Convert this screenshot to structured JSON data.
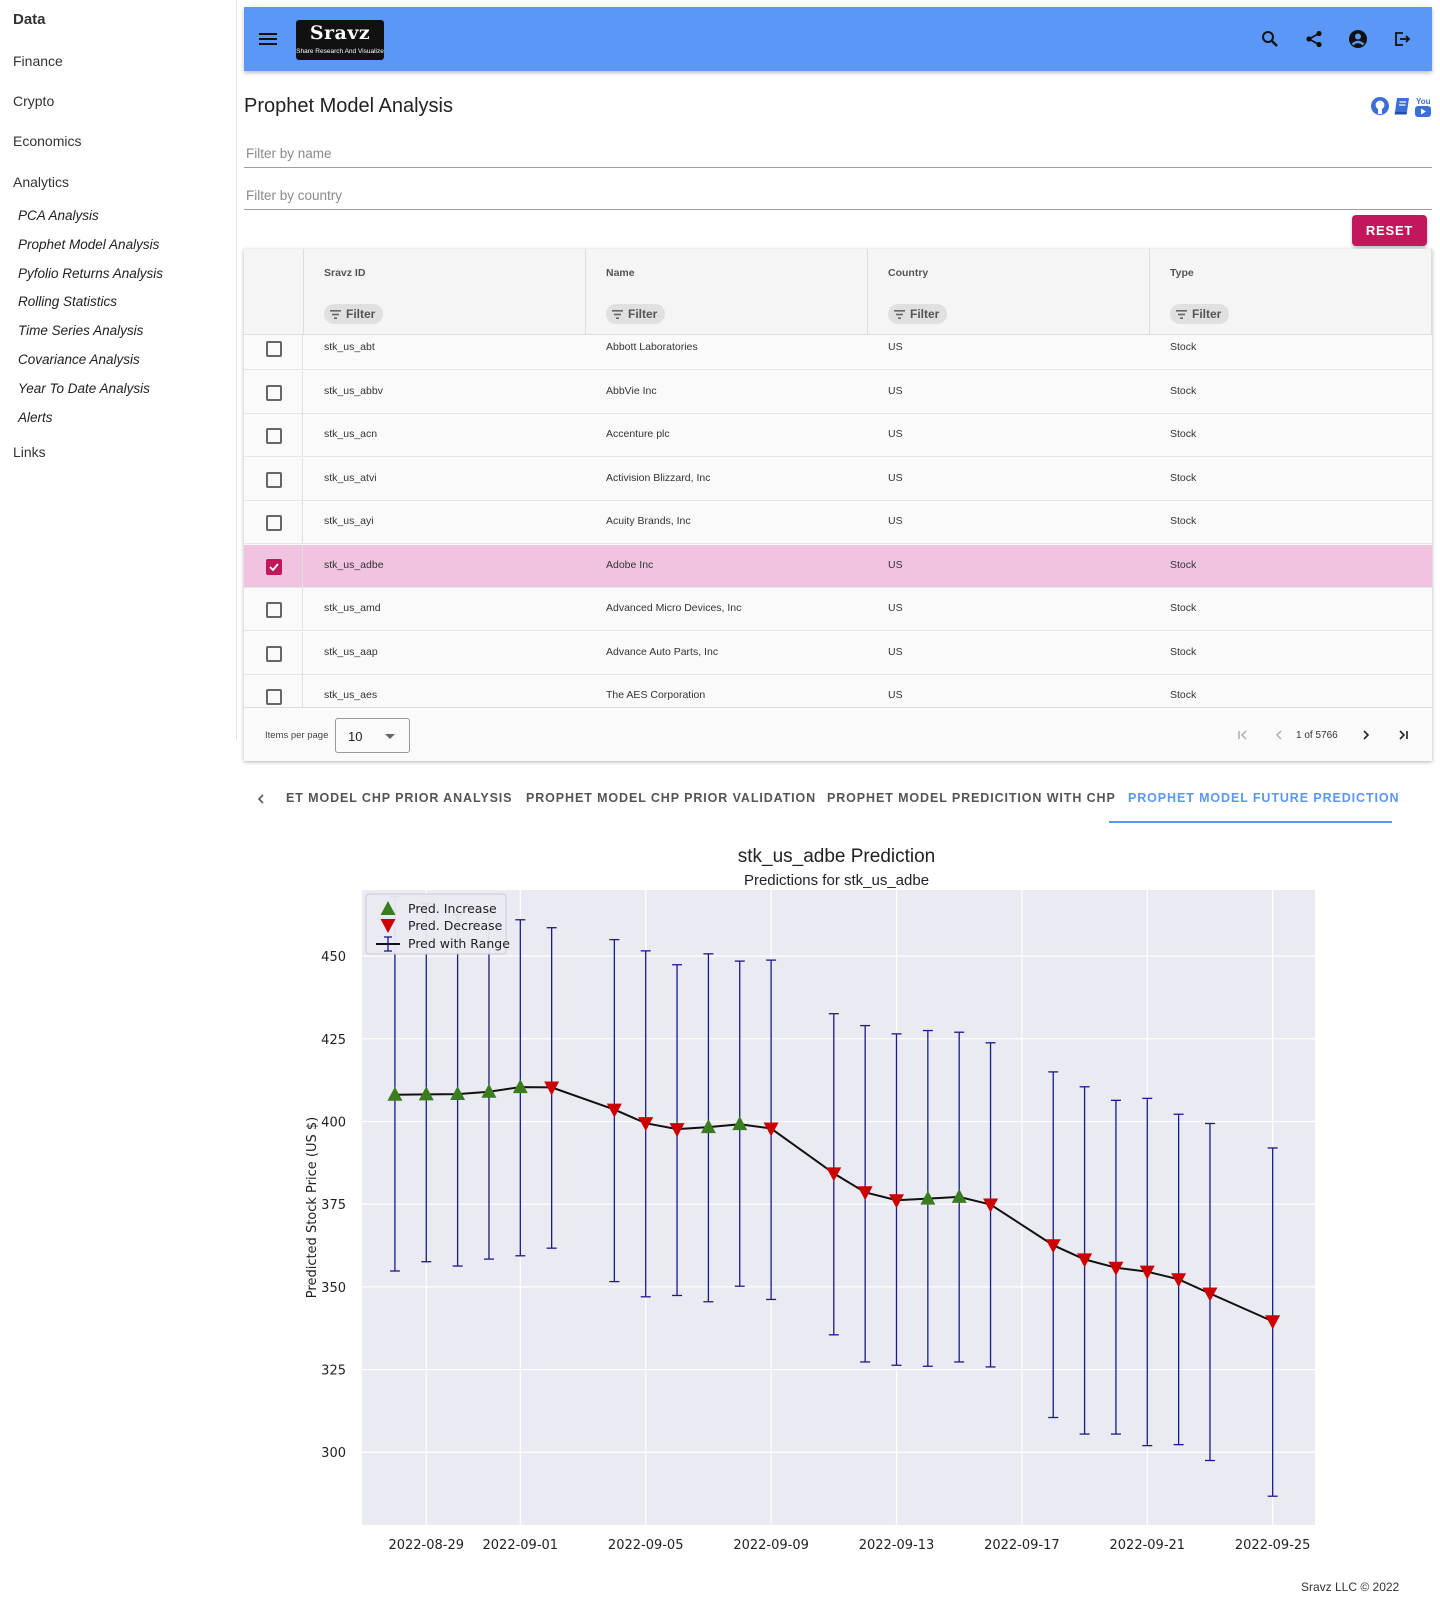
{
  "sidebar": {
    "categories": [
      "Data",
      "Finance",
      "Crypto",
      "Economics",
      "Analytics",
      "Links"
    ],
    "analytics_items": [
      "PCA Analysis",
      "Prophet Model Analysis",
      "Pyfolio Returns Analysis",
      "Rolling Statistics",
      "Time Series Analysis",
      "Covariance Analysis",
      "Year To Date Analysis",
      "Alerts"
    ]
  },
  "header": {
    "logo_main": "Sravz",
    "logo_sub": "Share Research And Visualize",
    "icons": [
      "menu-icon",
      "search-icon",
      "share-icon",
      "account-icon",
      "logout-icon"
    ],
    "color": "#5a97f7"
  },
  "page": {
    "title": "Prophet Model Analysis",
    "social_icons": [
      "github-icon",
      "book-icon",
      "youtube-icon"
    ]
  },
  "filters": {
    "name_placeholder": "Filter by name",
    "country_placeholder": "Filter by country",
    "reset_label": "RESET"
  },
  "table": {
    "columns": [
      "Sravz ID",
      "Name",
      "Country",
      "Type"
    ],
    "filter_label": "Filter",
    "rows": [
      {
        "id": "stk_us_abt",
        "name": "Abbott Laboratories",
        "country": "US",
        "type": "Stock",
        "selected": false
      },
      {
        "id": "stk_us_abbv",
        "name": "AbbVie Inc",
        "country": "US",
        "type": "Stock",
        "selected": false
      },
      {
        "id": "stk_us_acn",
        "name": "Accenture plc",
        "country": "US",
        "type": "Stock",
        "selected": false
      },
      {
        "id": "stk_us_atvi",
        "name": "Activision Blizzard, Inc",
        "country": "US",
        "type": "Stock",
        "selected": false
      },
      {
        "id": "stk_us_ayi",
        "name": "Acuity Brands, Inc",
        "country": "US",
        "type": "Stock",
        "selected": false
      },
      {
        "id": "stk_us_adbe",
        "name": "Adobe Inc",
        "country": "US",
        "type": "Stock",
        "selected": true
      },
      {
        "id": "stk_us_amd",
        "name": "Advanced Micro Devices, Inc",
        "country": "US",
        "type": "Stock",
        "selected": false
      },
      {
        "id": "stk_us_aap",
        "name": "Advance Auto Parts, Inc",
        "country": "US",
        "type": "Stock",
        "selected": false
      },
      {
        "id": "stk_us_aes",
        "name": "The AES Corporation",
        "country": "US",
        "type": "Stock",
        "selected": false
      }
    ],
    "items_per_page_label": "Items per page",
    "items_per_page": "10",
    "range_label": "1 of 5766",
    "selected_color": "#f0c4e0",
    "accent_color": "#c2185b"
  },
  "tabs": {
    "items": [
      "ET MODEL CHP PRIOR ANALYSIS",
      "PROPHET MODEL CHP PRIOR VALIDATION",
      "PROPHET MODEL PREDICITION WITH CHP",
      "PROPHET MODEL FUTURE PREDICTION"
    ],
    "active_index": 3
  },
  "chart_data": {
    "type": "line",
    "title": "stk_us_adbe Prediction",
    "subtitle": "Predictions for stk_us_adbe",
    "xlabel": "",
    "ylabel": "Predicted Stock Price (US $)",
    "x_start": "2022-08-28",
    "x_end": "2022-09-25",
    "ylim": [
      278,
      470
    ],
    "y_ticks": [
      300,
      325,
      350,
      375,
      400,
      425,
      450
    ],
    "x_ticks": [
      "2022-08-29",
      "2022-09-01",
      "2022-09-05",
      "2022-09-09",
      "2022-09-13",
      "2022-09-17",
      "2022-09-21",
      "2022-09-25"
    ],
    "grid": true,
    "legend_position": "top-left",
    "legend": [
      "Pred. Increase",
      "Pred. Decrease",
      "Pred with Range"
    ],
    "colors": {
      "increase": "#3a7d1f",
      "decrease": "#cc0000",
      "line": "#111111",
      "range": "#1a1a8c",
      "plot_bg": "#eaeaf2"
    },
    "points": [
      {
        "date": "2022-08-28",
        "value": 408.1,
        "low": 354.8,
        "high": 468.0,
        "dir": "up"
      },
      {
        "date": "2022-08-29",
        "value": 408.2,
        "low": 357.6,
        "high": 466.0,
        "dir": "up"
      },
      {
        "date": "2022-08-30",
        "value": 408.3,
        "low": 356.3,
        "high": 462.5,
        "dir": "up"
      },
      {
        "date": "2022-08-31",
        "value": 409.0,
        "low": 358.4,
        "high": 464.0,
        "dir": "up"
      },
      {
        "date": "2022-09-01",
        "value": 410.4,
        "low": 359.4,
        "high": 461.0,
        "dir": "up"
      },
      {
        "date": "2022-09-02",
        "value": 410.3,
        "low": 361.7,
        "high": 458.6,
        "dir": "down"
      },
      {
        "date": "2022-09-04",
        "value": 403.6,
        "low": 351.6,
        "high": 455.0,
        "dir": "down"
      },
      {
        "date": "2022-09-05",
        "value": 399.5,
        "low": 347.0,
        "high": 451.6,
        "dir": "down"
      },
      {
        "date": "2022-09-06",
        "value": 397.7,
        "low": 347.4,
        "high": 447.4,
        "dir": "down"
      },
      {
        "date": "2022-09-07",
        "value": 398.3,
        "low": 345.5,
        "high": 450.7,
        "dir": "up"
      },
      {
        "date": "2022-09-08",
        "value": 399.2,
        "low": 350.2,
        "high": 448.5,
        "dir": "up"
      },
      {
        "date": "2022-09-09",
        "value": 397.9,
        "low": 346.2,
        "high": 448.8,
        "dir": "down"
      },
      {
        "date": "2022-09-11",
        "value": 384.3,
        "low": 335.5,
        "high": 432.6,
        "dir": "down"
      },
      {
        "date": "2022-09-12",
        "value": 378.6,
        "low": 327.3,
        "high": 429.0,
        "dir": "down"
      },
      {
        "date": "2022-09-13",
        "value": 376.2,
        "low": 326.3,
        "high": 426.5,
        "dir": "down"
      },
      {
        "date": "2022-09-14",
        "value": 376.7,
        "low": 326.0,
        "high": 427.5,
        "dir": "up"
      },
      {
        "date": "2022-09-15",
        "value": 377.2,
        "low": 327.3,
        "high": 427.0,
        "dir": "up"
      },
      {
        "date": "2022-09-16",
        "value": 374.9,
        "low": 325.8,
        "high": 423.8,
        "dir": "down"
      },
      {
        "date": "2022-09-18",
        "value": 362.6,
        "low": 310.5,
        "high": 415.0,
        "dir": "down"
      },
      {
        "date": "2022-09-19",
        "value": 358.3,
        "low": 305.5,
        "high": 410.5,
        "dir": "down"
      },
      {
        "date": "2022-09-20",
        "value": 355.8,
        "low": 305.5,
        "high": 406.4,
        "dir": "down"
      },
      {
        "date": "2022-09-21",
        "value": 354.6,
        "low": 302.0,
        "high": 407.0,
        "dir": "down"
      },
      {
        "date": "2022-09-22",
        "value": 352.3,
        "low": 302.3,
        "high": 402.2,
        "dir": "down"
      },
      {
        "date": "2022-09-23",
        "value": 348.0,
        "low": 297.5,
        "high": 399.4,
        "dir": "down"
      },
      {
        "date": "2022-09-25",
        "value": 339.6,
        "low": 286.7,
        "high": 392.0,
        "dir": "down"
      }
    ]
  },
  "footer": {
    "text": "Sravz LLC © 2022"
  }
}
